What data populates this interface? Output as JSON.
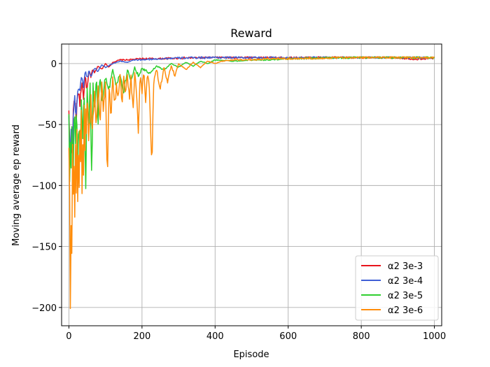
{
  "chart_data": {
    "type": "line",
    "title": "Reward",
    "xlabel": "Episode",
    "ylabel": "Moving average ep reward",
    "xlim": [
      -20,
      1020
    ],
    "ylim": [
      -215,
      16
    ],
    "xticks": [
      0,
      200,
      400,
      600,
      800,
      1000
    ],
    "yticks": [
      0,
      -50,
      -100,
      -150,
      -200
    ],
    "xtick_labels": [
      "0",
      "200",
      "400",
      "600",
      "800",
      "1000"
    ],
    "ytick_labels": [
      "0",
      "−50",
      "−100",
      "−150",
      "−200"
    ],
    "grid": true,
    "legend_position": "lower-right",
    "episodes": 1000,
    "series": [
      {
        "name": "α2 3e-3",
        "color": "#e8141c",
        "points": [
          [
            0,
            -42
          ],
          [
            3,
            -75
          ],
          [
            6,
            -55
          ],
          [
            9,
            -88
          ],
          [
            12,
            -40
          ],
          [
            16,
            -28
          ],
          [
            20,
            -48
          ],
          [
            25,
            -20
          ],
          [
            30,
            -32
          ],
          [
            35,
            -15
          ],
          [
            40,
            -26
          ],
          [
            45,
            -10
          ],
          [
            50,
            -22
          ],
          [
            55,
            -6
          ],
          [
            60,
            -12
          ],
          [
            65,
            -4
          ],
          [
            70,
            -8
          ],
          [
            80,
            -2
          ],
          [
            90,
            -5
          ],
          [
            100,
            0
          ],
          [
            110,
            -3
          ],
          [
            120,
            1
          ],
          [
            140,
            3
          ],
          [
            160,
            3
          ],
          [
            200,
            4
          ],
          [
            250,
            4
          ],
          [
            300,
            4.5
          ],
          [
            400,
            5
          ],
          [
            500,
            5
          ],
          [
            600,
            4.8
          ],
          [
            700,
            5
          ],
          [
            800,
            5
          ],
          [
            900,
            4.8
          ],
          [
            950,
            3.5
          ],
          [
            1000,
            4.5
          ]
        ]
      },
      {
        "name": "α2 3e-4",
        "color": "#3f5fd6",
        "points": [
          [
            0,
            -45
          ],
          [
            3,
            -70
          ],
          [
            6,
            -50
          ],
          [
            9,
            -80
          ],
          [
            12,
            -42
          ],
          [
            16,
            -30
          ],
          [
            20,
            -40
          ],
          [
            25,
            -18
          ],
          [
            30,
            -25
          ],
          [
            35,
            -8
          ],
          [
            40,
            -20
          ],
          [
            45,
            -5
          ],
          [
            50,
            -12
          ],
          [
            55,
            -6
          ],
          [
            60,
            -10
          ],
          [
            70,
            -4
          ],
          [
            80,
            -6
          ],
          [
            90,
            -1
          ],
          [
            100,
            -3
          ],
          [
            120,
            0
          ],
          [
            140,
            2
          ],
          [
            160,
            1
          ],
          [
            180,
            3
          ],
          [
            200,
            3
          ],
          [
            250,
            4
          ],
          [
            300,
            4.5
          ],
          [
            400,
            5
          ],
          [
            500,
            5
          ],
          [
            600,
            4.5
          ],
          [
            700,
            5
          ],
          [
            800,
            5
          ],
          [
            900,
            5
          ],
          [
            1000,
            4.8
          ]
        ]
      },
      {
        "name": "α2 3e-5",
        "color": "#2fcf2f",
        "points": [
          [
            0,
            -42
          ],
          [
            2,
            -100
          ],
          [
            4,
            -65
          ],
          [
            6,
            -85
          ],
          [
            9,
            -48
          ],
          [
            12,
            -95
          ],
          [
            15,
            -35
          ],
          [
            18,
            -60
          ],
          [
            21,
            -30
          ],
          [
            24,
            -90
          ],
          [
            27,
            -40
          ],
          [
            30,
            -80
          ],
          [
            34,
            -30
          ],
          [
            38,
            -60
          ],
          [
            42,
            -25
          ],
          [
            46,
            -100
          ],
          [
            50,
            -20
          ],
          [
            54,
            -55
          ],
          [
            58,
            -15
          ],
          [
            62,
            -95
          ],
          [
            66,
            -18
          ],
          [
            70,
            -40
          ],
          [
            75,
            -10
          ],
          [
            80,
            -45
          ],
          [
            85,
            -8
          ],
          [
            90,
            -30
          ],
          [
            100,
            -12
          ],
          [
            110,
            -20
          ],
          [
            120,
            -5
          ],
          [
            130,
            -18
          ],
          [
            140,
            -8
          ],
          [
            150,
            -25
          ],
          [
            160,
            -5
          ],
          [
            170,
            -15
          ],
          [
            180,
            -3
          ],
          [
            190,
            -10
          ],
          [
            200,
            -4
          ],
          [
            220,
            -8
          ],
          [
            240,
            -2
          ],
          [
            260,
            -5
          ],
          [
            280,
            0
          ],
          [
            300,
            -3
          ],
          [
            320,
            1
          ],
          [
            340,
            -2
          ],
          [
            360,
            2
          ],
          [
            380,
            0
          ],
          [
            400,
            3
          ],
          [
            450,
            2
          ],
          [
            500,
            3
          ],
          [
            550,
            3
          ],
          [
            600,
            4
          ],
          [
            700,
            4.5
          ],
          [
            800,
            5
          ],
          [
            900,
            5
          ],
          [
            1000,
            4.8
          ]
        ]
      },
      {
        "name": "α2 3e-6",
        "color": "#ff8c0a",
        "points": [
          [
            0,
            -68
          ],
          [
            2,
            -100
          ],
          [
            4,
            -204
          ],
          [
            6,
            -125
          ],
          [
            8,
            -150
          ],
          [
            10,
            -60
          ],
          [
            12,
            -110
          ],
          [
            14,
            -90
          ],
          [
            16,
            -133
          ],
          [
            18,
            -70
          ],
          [
            20,
            -100
          ],
          [
            22,
            -55
          ],
          [
            24,
            -115
          ],
          [
            26,
            -75
          ],
          [
            28,
            -95
          ],
          [
            30,
            -50
          ],
          [
            32,
            -80
          ],
          [
            34,
            -45
          ],
          [
            36,
            -105
          ],
          [
            38,
            -60
          ],
          [
            40,
            -85
          ],
          [
            42,
            -40
          ],
          [
            44,
            -70
          ],
          [
            46,
            -35
          ],
          [
            48,
            -60
          ],
          [
            50,
            -30
          ],
          [
            55,
            -65
          ],
          [
            60,
            -28
          ],
          [
            65,
            -55
          ],
          [
            70,
            -25
          ],
          [
            75,
            -50
          ],
          [
            80,
            -20
          ],
          [
            85,
            -45
          ],
          [
            90,
            -18
          ],
          [
            95,
            -40
          ],
          [
            100,
            -15
          ],
          [
            105,
            -98
          ],
          [
            110,
            -20
          ],
          [
            115,
            -45
          ],
          [
            120,
            -12
          ],
          [
            125,
            -40
          ],
          [
            130,
            -15
          ],
          [
            135,
            -30
          ],
          [
            140,
            -10
          ],
          [
            145,
            -35
          ],
          [
            150,
            -12
          ],
          [
            155,
            -25
          ],
          [
            160,
            -8
          ],
          [
            165,
            -30
          ],
          [
            170,
            -10
          ],
          [
            175,
            -40
          ],
          [
            180,
            -8
          ],
          [
            185,
            -20
          ],
          [
            190,
            -55
          ],
          [
            195,
            -10
          ],
          [
            200,
            -25
          ],
          [
            205,
            -5
          ],
          [
            210,
            -30
          ],
          [
            215,
            -8
          ],
          [
            220,
            -20
          ],
          [
            225,
            -66
          ],
          [
            228,
            -75
          ],
          [
            232,
            -15
          ],
          [
            240,
            -5
          ],
          [
            250,
            -20
          ],
          [
            260,
            -3
          ],
          [
            270,
            -15
          ],
          [
            280,
            -2
          ],
          [
            290,
            -10
          ],
          [
            300,
            0
          ],
          [
            320,
            -5
          ],
          [
            340,
            1
          ],
          [
            360,
            -3
          ],
          [
            380,
            2
          ],
          [
            400,
            0
          ],
          [
            420,
            2
          ],
          [
            450,
            3
          ],
          [
            500,
            3
          ],
          [
            550,
            4
          ],
          [
            600,
            4
          ],
          [
            700,
            4.5
          ],
          [
            800,
            5
          ],
          [
            900,
            5
          ],
          [
            1000,
            5
          ]
        ]
      }
    ]
  }
}
